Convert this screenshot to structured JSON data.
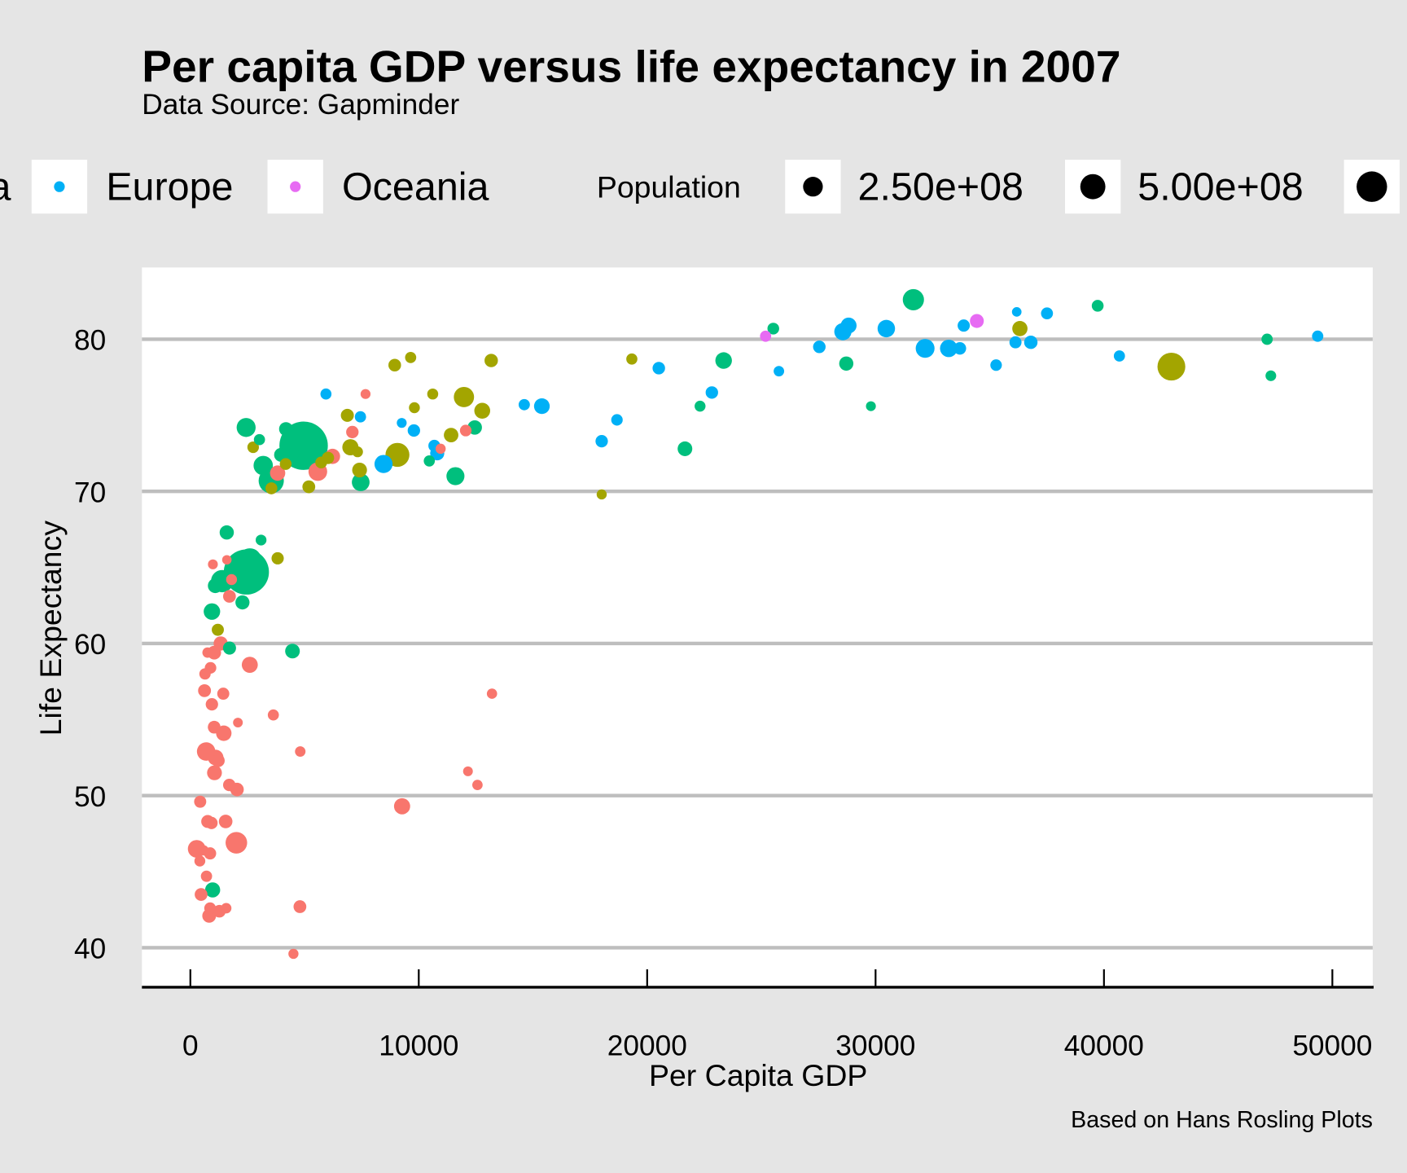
{
  "chart_data": {
    "type": "scatter",
    "title": "Per capita GDP versus life expectancy in 2007",
    "subtitle": "Data Source: Gapminder",
    "caption": "Based on Hans Rosling Plots",
    "xlabel": "Per Capita GDP",
    "ylabel": "Life Expectancy",
    "xlim": [
      -2100,
      51800
    ],
    "ylim": [
      37.4,
      84.7
    ],
    "x_ticks": [
      "0",
      "10000",
      "20000",
      "30000",
      "40000",
      "50000"
    ],
    "y_ticks": [
      "40",
      "50",
      "60",
      "70",
      "80"
    ],
    "grid": "horizontal major lines only",
    "legend_placement": "top",
    "legend": {
      "color_entries_visible": [
        {
          "label": "Asia",
          "continent": "Asia"
        },
        {
          "label": "Europe",
          "continent": "Europe"
        },
        {
          "label": "Oceania",
          "continent": "Oceania"
        }
      ],
      "size_title": "Population",
      "size_entries": [
        {
          "label": "2.50e+08",
          "value": 250
        },
        {
          "label": "5.00e+08",
          "value": 500
        },
        {
          "value": 750
        }
      ]
    },
    "colors": {
      "Africa": "#F8766D",
      "Americas": "#A3A500",
      "Asia": "#00BF7D",
      "Europe": "#00B0F6",
      "Oceania": "#E76BF3"
    },
    "point_fields": [
      "gdp_per_capita",
      "life_expectancy",
      "population_millions",
      "continent"
    ],
    "points": [
      [
        6223,
        72.3,
        33.3,
        "Africa"
      ],
      [
        4797,
        42.7,
        12.4,
        "Africa"
      ],
      [
        1441,
        56.7,
        8.08,
        "Africa"
      ],
      [
        12570,
        50.7,
        1.64,
        "Africa"
      ],
      [
        1217,
        52.3,
        14.3,
        "Africa"
      ],
      [
        430,
        49.6,
        8.39,
        "Africa"
      ],
      [
        2042,
        50.4,
        17.7,
        "Africa"
      ],
      [
        706,
        44.7,
        4.37,
        "Africa"
      ],
      [
        1704,
        50.7,
        10.2,
        "Africa"
      ],
      [
        986,
        65.2,
        0.71,
        "Africa"
      ],
      [
        278,
        46.5,
        64.6,
        "Africa"
      ],
      [
        3633,
        55.3,
        3.8,
        "Africa"
      ],
      [
        1545,
        48.3,
        18.0,
        "Africa"
      ],
      [
        2082,
        54.8,
        0.5,
        "Africa"
      ],
      [
        5581,
        71.3,
        80.3,
        "Africa"
      ],
      [
        12154,
        51.6,
        0.55,
        "Africa"
      ],
      [
        641,
        58.0,
        4.9,
        "Africa"
      ],
      [
        691,
        52.9,
        76.5,
        "Africa"
      ],
      [
        13206,
        56.7,
        1.45,
        "Africa"
      ],
      [
        753,
        59.4,
        1.69,
        "Africa"
      ],
      [
        1328,
        60.0,
        22.9,
        "Africa"
      ],
      [
        943,
        56.0,
        9.9,
        "Africa"
      ],
      [
        579,
        46.4,
        1.47,
        "Africa"
      ],
      [
        1463,
        54.1,
        35.6,
        "Africa"
      ],
      [
        1569,
        42.6,
        2.01,
        "Africa"
      ],
      [
        415,
        45.7,
        3.19,
        "Africa"
      ],
      [
        12057,
        74.0,
        6.04,
        "Africa"
      ],
      [
        1045,
        59.4,
        19.2,
        "Africa"
      ],
      [
        759,
        48.3,
        13.3,
        "Africa"
      ],
      [
        1043,
        54.5,
        12.0,
        "Africa"
      ],
      [
        1803,
        64.2,
        3.27,
        "Africa"
      ],
      [
        10957,
        72.8,
        1.25,
        "Africa"
      ],
      [
        3820,
        71.2,
        33.8,
        "Africa"
      ],
      [
        824,
        42.1,
        20.0,
        "Africa"
      ],
      [
        4811,
        52.9,
        2.06,
        "Africa"
      ],
      [
        620,
        56.9,
        12.9,
        "Africa"
      ],
      [
        2014,
        46.9,
        135,
        "Africa"
      ],
      [
        7670,
        76.4,
        0.8,
        "Africa"
      ],
      [
        863,
        46.2,
        8.86,
        "Africa"
      ],
      [
        1598,
        65.5,
        0.2,
        "Africa"
      ],
      [
        1712,
        63.1,
        12.3,
        "Africa"
      ],
      [
        863,
        42.6,
        6.14,
        "Africa"
      ],
      [
        926,
        48.2,
        9.1,
        "Africa"
      ],
      [
        9270,
        49.3,
        44.0,
        "Africa"
      ],
      [
        2602,
        58.6,
        42.3,
        "Africa"
      ],
      [
        4513,
        39.6,
        1.13,
        "Africa"
      ],
      [
        1107,
        52.5,
        38.1,
        "Africa"
      ],
      [
        883,
        58.4,
        5.7,
        "Africa"
      ],
      [
        7093,
        73.9,
        10.3,
        "Africa"
      ],
      [
        1056,
        51.5,
        29.2,
        "Africa"
      ],
      [
        1271,
        42.4,
        11.7,
        "Africa"
      ],
      [
        470,
        43.5,
        12.3,
        "Africa"
      ],
      [
        12779,
        75.3,
        40.3,
        "Americas"
      ],
      [
        3822,
        65.6,
        9.1,
        "Americas"
      ],
      [
        9066,
        72.4,
        190,
        "Americas"
      ],
      [
        36319,
        80.7,
        33.4,
        "Americas"
      ],
      [
        13172,
        78.6,
        16.3,
        "Americas"
      ],
      [
        7007,
        72.9,
        44.2,
        "Americas"
      ],
      [
        9645,
        78.8,
        4.1,
        "Americas"
      ],
      [
        8948,
        78.3,
        11.4,
        "Americas"
      ],
      [
        6025,
        72.2,
        9.3,
        "Americas"
      ],
      [
        6873,
        75.0,
        13.8,
        "Americas"
      ],
      [
        5728,
        71.9,
        6.9,
        "Americas"
      ],
      [
        5186,
        70.3,
        12.6,
        "Americas"
      ],
      [
        1202,
        60.9,
        8.5,
        "Americas"
      ],
      [
        3548,
        70.2,
        7.5,
        "Americas"
      ],
      [
        7321,
        72.6,
        2.8,
        "Americas"
      ],
      [
        11978,
        76.2,
        108,
        "Americas"
      ],
      [
        2749,
        72.9,
        5.7,
        "Americas"
      ],
      [
        9809,
        75.5,
        3.2,
        "Americas"
      ],
      [
        4173,
        71.8,
        6.7,
        "Americas"
      ],
      [
        7409,
        71.4,
        28.7,
        "Americas"
      ],
      [
        19329,
        78.7,
        3.9,
        "Americas"
      ],
      [
        18009,
        69.8,
        1.06,
        "Americas"
      ],
      [
        42952,
        78.2,
        301,
        "Americas"
      ],
      [
        10611,
        76.4,
        3.4,
        "Americas"
      ],
      [
        11416,
        73.7,
        26.1,
        "Americas"
      ],
      [
        975,
        43.8,
        31.9,
        "Asia"
      ],
      [
        29796,
        75.6,
        0.71,
        "Asia"
      ],
      [
        1391,
        64.1,
        150,
        "Asia"
      ],
      [
        1714,
        59.7,
        14.1,
        "Asia"
      ],
      [
        4959,
        73.0,
        1319,
        "Asia"
      ],
      [
        39725,
        82.2,
        6.98,
        "Asia"
      ],
      [
        2452,
        64.7,
        1110,
        "Asia"
      ],
      [
        3541,
        70.7,
        224,
        "Asia"
      ],
      [
        11606,
        71.0,
        69.5,
        "Asia"
      ],
      [
        4471,
        59.5,
        27.5,
        "Asia"
      ],
      [
        25523,
        80.7,
        6.4,
        "Asia"
      ],
      [
        31656,
        82.6,
        127,
        "Asia"
      ],
      [
        4519,
        72.5,
        6.05,
        "Asia"
      ],
      [
        1593,
        67.3,
        23.3,
        "Asia"
      ],
      [
        23348,
        78.6,
        49.0,
        "Asia"
      ],
      [
        47307,
        77.6,
        2.5,
        "Asia"
      ],
      [
        10461,
        72.0,
        3.9,
        "Asia"
      ],
      [
        12452,
        74.2,
        24.8,
        "Asia"
      ],
      [
        3096,
        66.8,
        2.87,
        "Asia"
      ],
      [
        944,
        62.1,
        47.8,
        "Asia"
      ],
      [
        1091,
        63.8,
        28.9,
        "Asia"
      ],
      [
        22316,
        75.6,
        3.2,
        "Asia"
      ],
      [
        2606,
        65.5,
        169,
        "Asia"
      ],
      [
        3190,
        71.7,
        91.1,
        "Asia"
      ],
      [
        21655,
        72.8,
        27.6,
        "Asia"
      ],
      [
        47143,
        80.0,
        4.55,
        "Asia"
      ],
      [
        3970,
        72.4,
        20.4,
        "Asia"
      ],
      [
        4185,
        74.1,
        19.3,
        "Asia"
      ],
      [
        28718,
        78.4,
        23.2,
        "Asia"
      ],
      [
        7458,
        70.6,
        65.1,
        "Asia"
      ],
      [
        2442,
        74.2,
        85.3,
        "Asia"
      ],
      [
        3025,
        73.4,
        4.0,
        "Asia"
      ],
      [
        2281,
        62.7,
        22.2,
        "Asia"
      ],
      [
        5937,
        76.4,
        3.6,
        "Europe"
      ],
      [
        36126,
        79.8,
        8.2,
        "Europe"
      ],
      [
        33693,
        79.4,
        10.4,
        "Europe"
      ],
      [
        7446,
        74.9,
        4.55,
        "Europe"
      ],
      [
        10681,
        73.0,
        7.3,
        "Europe"
      ],
      [
        14619,
        75.7,
        4.5,
        "Europe"
      ],
      [
        22833,
        76.5,
        10.2,
        "Europe"
      ],
      [
        35278,
        78.3,
        5.5,
        "Europe"
      ],
      [
        33207,
        79.3,
        5.2,
        "Europe"
      ],
      [
        30470,
        80.7,
        61.1,
        "Europe"
      ],
      [
        32170,
        79.4,
        82.4,
        "Europe"
      ],
      [
        27538,
        79.5,
        10.7,
        "Europe"
      ],
      [
        18009,
        73.3,
        9.96,
        "Europe"
      ],
      [
        36181,
        81.8,
        0.3,
        "Europe"
      ],
      [
        40676,
        78.9,
        4.1,
        "Europe"
      ],
      [
        28570,
        80.5,
        58.1,
        "Europe"
      ],
      [
        9254,
        74.5,
        0.68,
        "Europe"
      ],
      [
        36798,
        79.8,
        16.6,
        "Europe"
      ],
      [
        49357,
        80.2,
        4.6,
        "Europe"
      ],
      [
        15390,
        75.6,
        38.5,
        "Europe"
      ],
      [
        20510,
        78.1,
        10.6,
        "Europe"
      ],
      [
        10808,
        72.5,
        22.3,
        "Europe"
      ],
      [
        9787,
        74.0,
        10.2,
        "Europe"
      ],
      [
        18678,
        74.7,
        5.4,
        "Europe"
      ],
      [
        25768,
        77.9,
        2.0,
        "Europe"
      ],
      [
        28821,
        80.9,
        40.4,
        "Europe"
      ],
      [
        33860,
        80.9,
        9.0,
        "Europe"
      ],
      [
        37506,
        81.7,
        7.55,
        "Europe"
      ],
      [
        8458,
        71.8,
        71.2,
        "Europe"
      ],
      [
        33203,
        79.4,
        60.8,
        "Europe"
      ],
      [
        34435,
        81.2,
        20.4,
        "Oceania"
      ],
      [
        25185,
        80.2,
        4.1,
        "Oceania"
      ]
    ]
  }
}
